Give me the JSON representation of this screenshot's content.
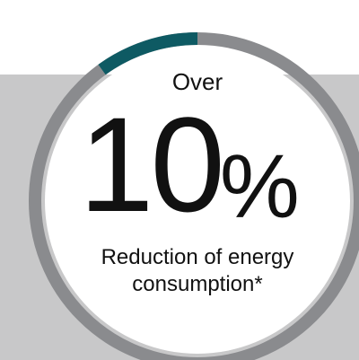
{
  "stat": {
    "prefix": "Over",
    "value": "10",
    "unit": "%",
    "caption_line1": "Reduction of energy",
    "caption_line2": "consumption*"
  },
  "gauge": {
    "fraction": 0.1,
    "track_color": "#8a8b8e",
    "fill_color": "#0e5a63",
    "inner_color": "#ffffff",
    "band_color": "#c8c8c9"
  }
}
